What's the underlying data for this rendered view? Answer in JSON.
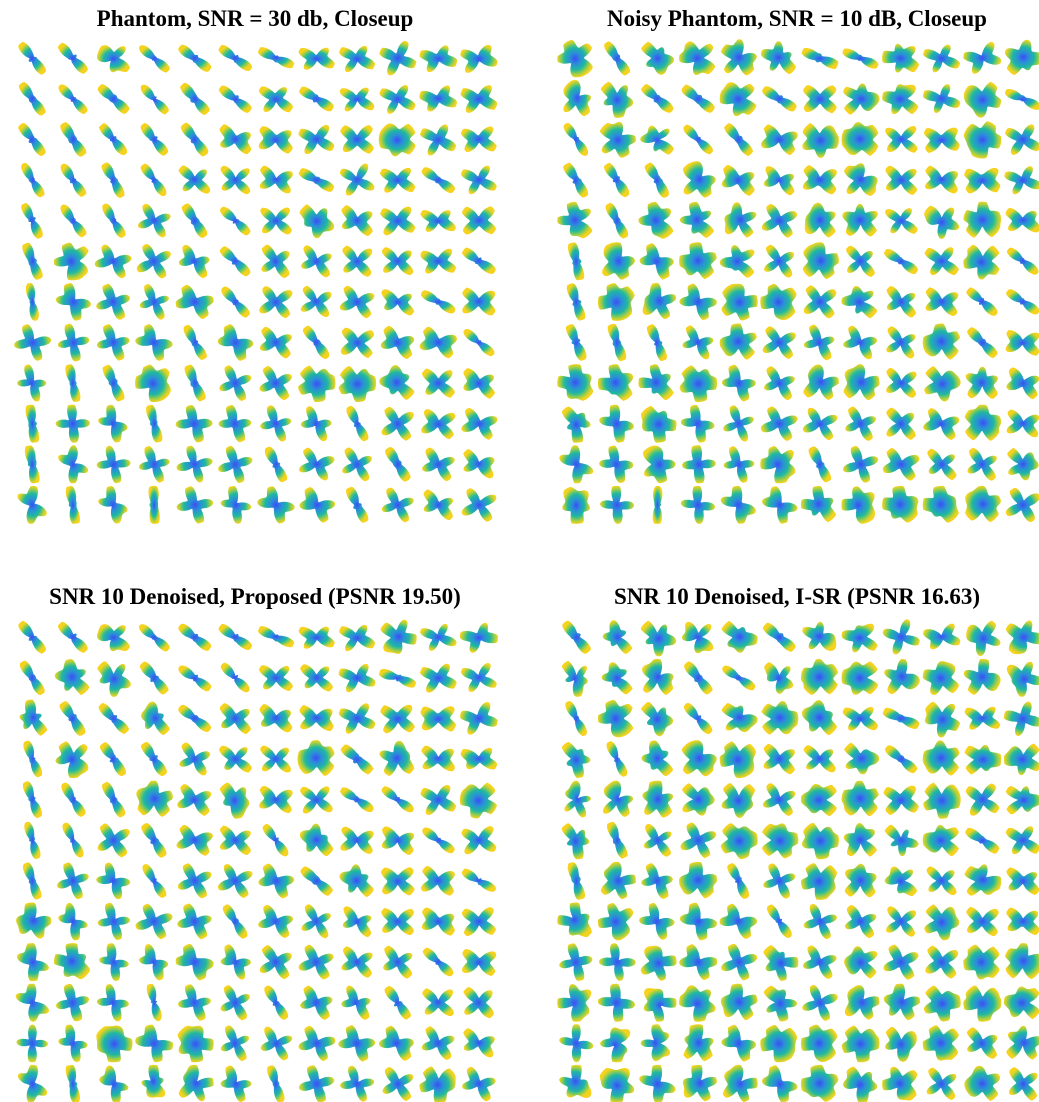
{
  "panels": [
    {
      "title": "Phantom, SNR = 30 db, Closeup"
    },
    {
      "title": "Noisy Phantom, SNR = 10 dB, Closeup"
    },
    {
      "title": "SNR 10 Denoised, Proposed (PSNR 19.50)"
    },
    {
      "title": "SNR 10 Denoised, I-SR (PSNR 16.63)"
    }
  ]
}
